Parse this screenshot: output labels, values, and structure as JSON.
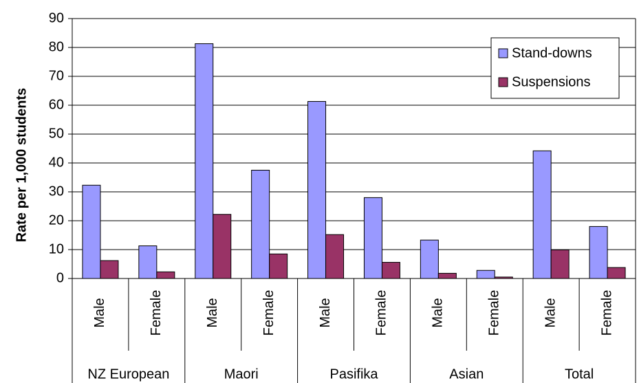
{
  "chart_data": {
    "type": "bar",
    "y_label": "Rate per 1,000 students",
    "categories": [
      "Male",
      "Female",
      "Male",
      "Female",
      "Male",
      "Female",
      "Male",
      "Female",
      "Male",
      "Female"
    ],
    "groups": [
      "NZ European",
      "Maori",
      "Pasifika",
      "Asian",
      "Total"
    ],
    "series": [
      {
        "name": "Stand-downs",
        "color": "#9999ff",
        "values": [
          32.3,
          11.3,
          81.3,
          37.5,
          61.3,
          28,
          13.3,
          2.8,
          44.2,
          18
        ]
      },
      {
        "name": "Suspensions",
        "color": "#993366",
        "values": [
          6.2,
          2.3,
          22.2,
          8.5,
          15.2,
          5.6,
          1.8,
          0.5,
          9.9,
          3.8
        ]
      }
    ],
    "ylim": [
      0,
      90
    ],
    "yticks": [
      0,
      10,
      20,
      30,
      40,
      50,
      60,
      70,
      80,
      90
    ],
    "grid": true,
    "legend": "upper right"
  }
}
